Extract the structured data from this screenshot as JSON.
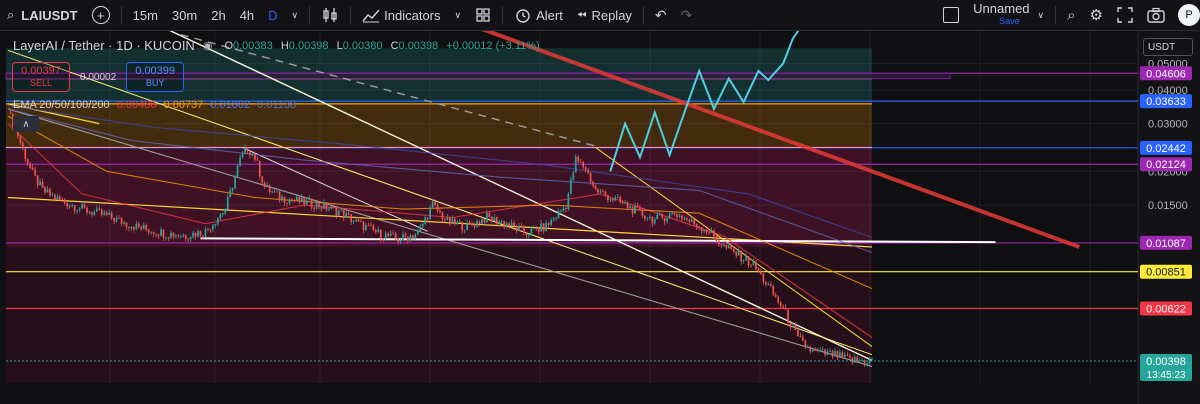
{
  "toolbar": {
    "symbol": "LAIUSDT",
    "add_label": "+",
    "intervals": [
      "15m",
      "30m",
      "2h",
      "4h",
      "D"
    ],
    "active_interval": "D",
    "indicators_label": "Indicators",
    "alert_label": "Alert",
    "replay_label": "Replay",
    "layout_name": "Unnamed",
    "save_label": "Save",
    "publish_label": "P"
  },
  "legend": {
    "title": "LayerAI / Tether · 1D · KUCOIN",
    "o_label": "O",
    "o": "0.00383",
    "h_label": "H",
    "h": "0.00398",
    "l_label": "L",
    "l": "0.00380",
    "c_label": "C",
    "c": "0.00398",
    "change": "+0.00012 (+3.11%)"
  },
  "trade": {
    "sell_price": "0.00397",
    "sell_label": "SELL",
    "spread": "0.00002",
    "buy_price": "0.00399",
    "buy_label": "BUY"
  },
  "ema": {
    "label": "EMA 20/50/100/200",
    "values": [
      "0.00486",
      "0.00737",
      "0.01002",
      "0.01138"
    ],
    "colors": [
      "#f23645",
      "#ff9800",
      "#2962ff",
      "#3f51b5"
    ]
  },
  "currency": "USDT",
  "colors": {
    "up": "#26a69a",
    "down": "#ef5350",
    "trendline_red": "#e53935",
    "projection": "#4dd0e1",
    "purple": "#9c27b0",
    "blue": "#2962ff",
    "yellow": "#ffeb3b"
  },
  "chart_data": {
    "type": "line",
    "title": "LayerAI / Tether · 1D · KUCOIN",
    "scale": "log",
    "ylim": [
      0.0033,
      0.066
    ],
    "y_ticks": [
      "0.05000",
      "0.04500",
      "0.04000",
      "0.03000",
      "0.02000",
      "0.01500"
    ],
    "y_tick_values": [
      0.05,
      0.045,
      0.04,
      0.03,
      0.02,
      0.015
    ],
    "levels": [
      {
        "value": 0.04606,
        "label": "0.04606",
        "color": "#9c27b0"
      },
      {
        "value": 0.03633,
        "label": "0.03633",
        "color": "#2962ff"
      },
      {
        "value": 0.02442,
        "label": "0.02442",
        "color": "#2962ff"
      },
      {
        "value": 0.02124,
        "label": "0.02124",
        "color": "#9c27b0"
      },
      {
        "value": 0.01087,
        "label": "0.01087",
        "color": "#9c27b0"
      },
      {
        "value": 0.00851,
        "label": "0.00851",
        "color": "#ffeb3b"
      },
      {
        "value": 0.00622,
        "label": "0.00622",
        "color": "#f23645"
      }
    ],
    "last_price": {
      "value": 0.00398,
      "label": "0.00398",
      "countdown": "13:45:23",
      "color": "#26a69a"
    },
    "price_path": [
      [
        0,
        0.033
      ],
      [
        3,
        0.029
      ],
      [
        6,
        0.024
      ],
      [
        10,
        0.0195
      ],
      [
        14,
        0.017
      ],
      [
        20,
        0.0158
      ],
      [
        26,
        0.015
      ],
      [
        32,
        0.0143
      ],
      [
        40,
        0.0137
      ],
      [
        48,
        0.0128
      ],
      [
        56,
        0.0122
      ],
      [
        64,
        0.0118
      ],
      [
        72,
        0.0116
      ],
      [
        80,
        0.012
      ],
      [
        88,
        0.0145
      ],
      [
        94,
        0.022
      ],
      [
        97,
        0.0245
      ],
      [
        100,
        0.0225
      ],
      [
        104,
        0.0175
      ],
      [
        110,
        0.016
      ],
      [
        118,
        0.0155
      ],
      [
        126,
        0.015
      ],
      [
        134,
        0.0142
      ],
      [
        142,
        0.0128
      ],
      [
        150,
        0.0118
      ],
      [
        158,
        0.0112
      ],
      [
        166,
        0.0118
      ],
      [
        172,
        0.015
      ],
      [
        178,
        0.013
      ],
      [
        186,
        0.0125
      ],
      [
        194,
        0.0135
      ],
      [
        202,
        0.0128
      ],
      [
        210,
        0.0118
      ],
      [
        218,
        0.0125
      ],
      [
        226,
        0.015
      ],
      [
        230,
        0.022
      ],
      [
        234,
        0.0205
      ],
      [
        238,
        0.017
      ],
      [
        244,
        0.016
      ],
      [
        250,
        0.015
      ],
      [
        256,
        0.014
      ],
      [
        262,
        0.0132
      ],
      [
        270,
        0.014
      ],
      [
        278,
        0.0128
      ],
      [
        284,
        0.012
      ],
      [
        290,
        0.0105
      ],
      [
        296,
        0.0098
      ],
      [
        302,
        0.009
      ],
      [
        308,
        0.0075
      ],
      [
        314,
        0.0062
      ],
      [
        320,
        0.0048
      ],
      [
        326,
        0.0043
      ],
      [
        334,
        0.0042
      ],
      [
        342,
        0.004
      ],
      [
        350,
        0.00398
      ]
    ],
    "projection_path": [
      [
        244,
        0.02
      ],
      [
        250,
        0.03
      ],
      [
        256,
        0.0225
      ],
      [
        262,
        0.033
      ],
      [
        268,
        0.023
      ],
      [
        274,
        0.033
      ],
      [
        280,
        0.047
      ],
      [
        286,
        0.034
      ],
      [
        292,
        0.044
      ],
      [
        298,
        0.036
      ],
      [
        304,
        0.047
      ],
      [
        308,
        0.0435
      ],
      [
        314,
        0.05
      ],
      [
        318,
        0.062
      ],
      [
        322,
        0.07
      ]
    ],
    "ema_paths": {
      "ema20": [
        [
          0,
          0.03
        ],
        [
          30,
          0.0165
        ],
        [
          80,
          0.0128
        ],
        [
          120,
          0.015
        ],
        [
          180,
          0.0135
        ],
        [
          240,
          0.0165
        ],
        [
          290,
          0.0115
        ],
        [
          350,
          0.00486
        ]
      ],
      "ema50": [
        [
          0,
          0.032
        ],
        [
          40,
          0.02
        ],
        [
          100,
          0.016
        ],
        [
          160,
          0.0145
        ],
        [
          220,
          0.015
        ],
        [
          280,
          0.014
        ],
        [
          350,
          0.00737
        ]
      ],
      "ema100": [
        [
          0,
          0.034
        ],
        [
          50,
          0.026
        ],
        [
          120,
          0.022
        ],
        [
          200,
          0.019
        ],
        [
          280,
          0.017
        ],
        [
          350,
          0.01002
        ]
      ],
      "ema200": [
        [
          0,
          0.035
        ],
        [
          60,
          0.029
        ],
        [
          140,
          0.025
        ],
        [
          220,
          0.021
        ],
        [
          300,
          0.0165
        ],
        [
          350,
          0.01138
        ]
      ]
    },
    "zones": [
      {
        "from": 0.0355,
        "to": 0.057,
        "color": "#26a69a"
      },
      {
        "from": 0.0245,
        "to": 0.0355,
        "color": "#ff9800"
      },
      {
        "from": 0.0105,
        "to": 0.0245,
        "color": "#e91e63"
      }
    ]
  }
}
